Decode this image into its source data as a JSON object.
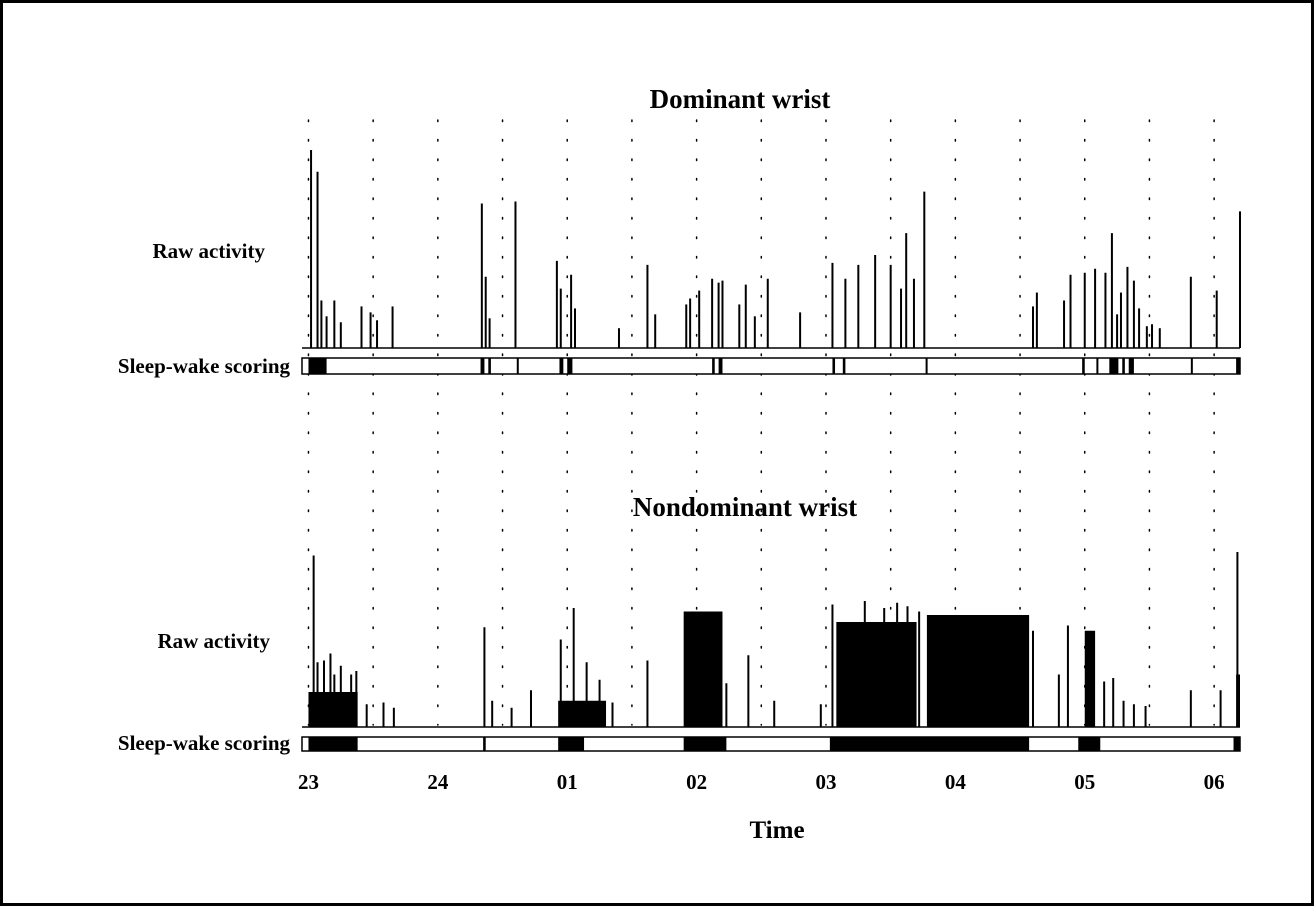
{
  "chart_data": {
    "type": "bar",
    "xlabel": "Time",
    "x_ticks": [
      {
        "hour": 23,
        "label": "23"
      },
      {
        "hour": 24,
        "label": "24"
      },
      {
        "hour": 25,
        "label": "01"
      },
      {
        "hour": 26,
        "label": "02"
      },
      {
        "hour": 27,
        "label": "03"
      },
      {
        "hour": 28,
        "label": "04"
      },
      {
        "hour": 29,
        "label": "05"
      },
      {
        "hour": 30,
        "label": "06"
      }
    ],
    "xlim": [
      22.95,
      30.2
    ],
    "grid": "dotted vertical",
    "panels": [
      {
        "title": "Dominant wrist",
        "activity_label": "Raw activity",
        "scoring_label": "Sleep-wake scoring",
        "activity_ylim": [
          0,
          100
        ],
        "activity_spikes": [
          {
            "x": 23.02,
            "y": 100
          },
          {
            "x": 23.07,
            "y": 89
          },
          {
            "x": 23.1,
            "y": 24
          },
          {
            "x": 23.14,
            "y": 16
          },
          {
            "x": 23.2,
            "y": 24
          },
          {
            "x": 23.25,
            "y": 13
          },
          {
            "x": 23.41,
            "y": 21
          },
          {
            "x": 23.48,
            "y": 18
          },
          {
            "x": 23.53,
            "y": 14
          },
          {
            "x": 23.65,
            "y": 21
          },
          {
            "x": 24.34,
            "y": 73
          },
          {
            "x": 24.37,
            "y": 36
          },
          {
            "x": 24.4,
            "y": 15
          },
          {
            "x": 24.6,
            "y": 74
          },
          {
            "x": 24.92,
            "y": 44
          },
          {
            "x": 24.95,
            "y": 30
          },
          {
            "x": 25.03,
            "y": 37
          },
          {
            "x": 25.06,
            "y": 20
          },
          {
            "x": 25.4,
            "y": 10
          },
          {
            "x": 25.62,
            "y": 42
          },
          {
            "x": 25.68,
            "y": 17
          },
          {
            "x": 25.92,
            "y": 22
          },
          {
            "x": 25.95,
            "y": 25
          },
          {
            "x": 26.02,
            "y": 29
          },
          {
            "x": 26.12,
            "y": 35
          },
          {
            "x": 26.17,
            "y": 33
          },
          {
            "x": 26.2,
            "y": 34
          },
          {
            "x": 26.33,
            "y": 22
          },
          {
            "x": 26.38,
            "y": 32
          },
          {
            "x": 26.45,
            "y": 16
          },
          {
            "x": 26.55,
            "y": 35
          },
          {
            "x": 26.8,
            "y": 18
          },
          {
            "x": 27.05,
            "y": 43
          },
          {
            "x": 27.15,
            "y": 35
          },
          {
            "x": 27.25,
            "y": 42
          },
          {
            "x": 27.38,
            "y": 47
          },
          {
            "x": 27.5,
            "y": 42
          },
          {
            "x": 27.58,
            "y": 30
          },
          {
            "x": 27.62,
            "y": 58
          },
          {
            "x": 27.68,
            "y": 35
          },
          {
            "x": 27.76,
            "y": 79
          },
          {
            "x": 28.6,
            "y": 21
          },
          {
            "x": 28.63,
            "y": 28
          },
          {
            "x": 28.84,
            "y": 24
          },
          {
            "x": 28.89,
            "y": 37
          },
          {
            "x": 29.0,
            "y": 38
          },
          {
            "x": 29.08,
            "y": 40
          },
          {
            "x": 29.16,
            "y": 38
          },
          {
            "x": 29.21,
            "y": 58
          },
          {
            "x": 29.25,
            "y": 17
          },
          {
            "x": 29.28,
            "y": 28
          },
          {
            "x": 29.33,
            "y": 41
          },
          {
            "x": 29.38,
            "y": 34
          },
          {
            "x": 29.42,
            "y": 20
          },
          {
            "x": 29.48,
            "y": 11
          },
          {
            "x": 29.52,
            "y": 12
          },
          {
            "x": 29.58,
            "y": 10
          },
          {
            "x": 29.82,
            "y": 36
          },
          {
            "x": 30.02,
            "y": 29
          },
          {
            "x": 30.2,
            "y": 69
          }
        ],
        "wake_intervals": [
          [
            23.0,
            23.14
          ],
          [
            24.33,
            24.36
          ],
          [
            24.39,
            24.41
          ],
          [
            24.61,
            24.62
          ],
          [
            24.94,
            24.97
          ],
          [
            25.0,
            25.04
          ],
          [
            26.12,
            26.14
          ],
          [
            26.17,
            26.2
          ],
          [
            27.05,
            27.07
          ],
          [
            27.13,
            27.15
          ],
          [
            27.77,
            27.78
          ],
          [
            28.98,
            29.0
          ],
          [
            29.09,
            29.1
          ],
          [
            29.19,
            29.26
          ],
          [
            29.29,
            29.31
          ],
          [
            29.34,
            29.38
          ],
          [
            29.82,
            29.83
          ],
          [
            30.17,
            30.2
          ]
        ]
      },
      {
        "title": "Nondominant wrist",
        "activity_label": "Raw activity",
        "scoring_label": "Sleep-wake scoring",
        "activity_ylim": [
          0,
          100
        ],
        "activity_spikes": [
          {
            "x": 23.04,
            "y": 98
          },
          {
            "x": 23.07,
            "y": 37
          },
          {
            "x": 23.12,
            "y": 38
          },
          {
            "x": 23.17,
            "y": 42
          },
          {
            "x": 23.2,
            "y": 30
          },
          {
            "x": 23.25,
            "y": 35
          },
          {
            "x": 23.33,
            "y": 30
          },
          {
            "x": 23.37,
            "y": 32
          },
          {
            "x": 23.45,
            "y": 13
          },
          {
            "x": 23.58,
            "y": 14
          },
          {
            "x": 23.66,
            "y": 11
          },
          {
            "x": 24.36,
            "y": 57
          },
          {
            "x": 24.42,
            "y": 15
          },
          {
            "x": 24.57,
            "y": 11
          },
          {
            "x": 24.72,
            "y": 21
          },
          {
            "x": 24.95,
            "y": 50
          },
          {
            "x": 25.05,
            "y": 68
          },
          {
            "x": 25.15,
            "y": 37
          },
          {
            "x": 25.25,
            "y": 27
          },
          {
            "x": 25.35,
            "y": 14
          },
          {
            "x": 25.62,
            "y": 38
          },
          {
            "x": 26.17,
            "y": 20
          },
          {
            "x": 26.23,
            "y": 25
          },
          {
            "x": 26.4,
            "y": 41
          },
          {
            "x": 26.6,
            "y": 15
          },
          {
            "x": 26.96,
            "y": 13
          },
          {
            "x": 27.05,
            "y": 70
          },
          {
            "x": 27.3,
            "y": 72
          },
          {
            "x": 27.45,
            "y": 68
          },
          {
            "x": 27.55,
            "y": 71
          },
          {
            "x": 27.63,
            "y": 69
          },
          {
            "x": 27.72,
            "y": 66
          },
          {
            "x": 28.6,
            "y": 55
          },
          {
            "x": 28.8,
            "y": 30
          },
          {
            "x": 28.87,
            "y": 58
          },
          {
            "x": 29.15,
            "y": 26
          },
          {
            "x": 29.22,
            "y": 28
          },
          {
            "x": 29.3,
            "y": 15
          },
          {
            "x": 29.38,
            "y": 13
          },
          {
            "x": 29.47,
            "y": 12
          },
          {
            "x": 29.82,
            "y": 21
          },
          {
            "x": 30.05,
            "y": 21
          },
          {
            "x": 30.18,
            "y": 100
          }
        ],
        "activity_blocks": [
          {
            "x_start": 23.0,
            "x_end": 23.38,
            "y": 20
          },
          {
            "x_start": 24.93,
            "x_end": 25.3,
            "y": 15
          },
          {
            "x_start": 25.9,
            "x_end": 26.2,
            "y": 66
          },
          {
            "x_start": 27.08,
            "x_end": 27.7,
            "y": 60
          },
          {
            "x_start": 27.78,
            "x_end": 28.57,
            "y": 64
          },
          {
            "x_start": 29.0,
            "x_end": 29.08,
            "y": 55
          },
          {
            "x_start": 30.17,
            "x_end": 30.2,
            "y": 30
          }
        ],
        "wake_intervals": [
          [
            23.0,
            23.38
          ],
          [
            24.35,
            24.37
          ],
          [
            24.93,
            25.13
          ],
          [
            25.9,
            26.23
          ],
          [
            27.03,
            28.57
          ],
          [
            28.95,
            29.12
          ],
          [
            30.15,
            30.2
          ]
        ]
      }
    ]
  }
}
